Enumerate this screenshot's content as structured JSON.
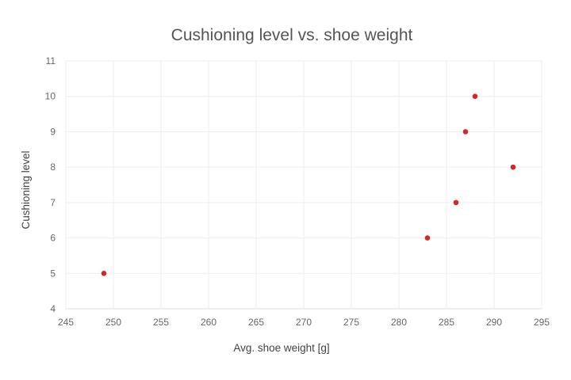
{
  "chart_data": {
    "type": "scatter",
    "title": "Cushioning level vs. shoe weight",
    "xlabel": "Avg. shoe weight [g]",
    "ylabel": "Cushioning level",
    "xlim": [
      245,
      295
    ],
    "ylim": [
      4,
      11
    ],
    "xticks": [
      245,
      250,
      255,
      260,
      265,
      270,
      275,
      280,
      285,
      290,
      295
    ],
    "yticks": [
      4,
      5,
      6,
      7,
      8,
      9,
      10,
      11
    ],
    "grid": true,
    "legend": "none",
    "marker_color": "#d62728",
    "points": [
      {
        "x": 249,
        "y": 5
      },
      {
        "x": 283,
        "y": 6
      },
      {
        "x": 286,
        "y": 7
      },
      {
        "x": 287,
        "y": 9
      },
      {
        "x": 288,
        "y": 10
      },
      {
        "x": 292,
        "y": 8
      }
    ]
  }
}
